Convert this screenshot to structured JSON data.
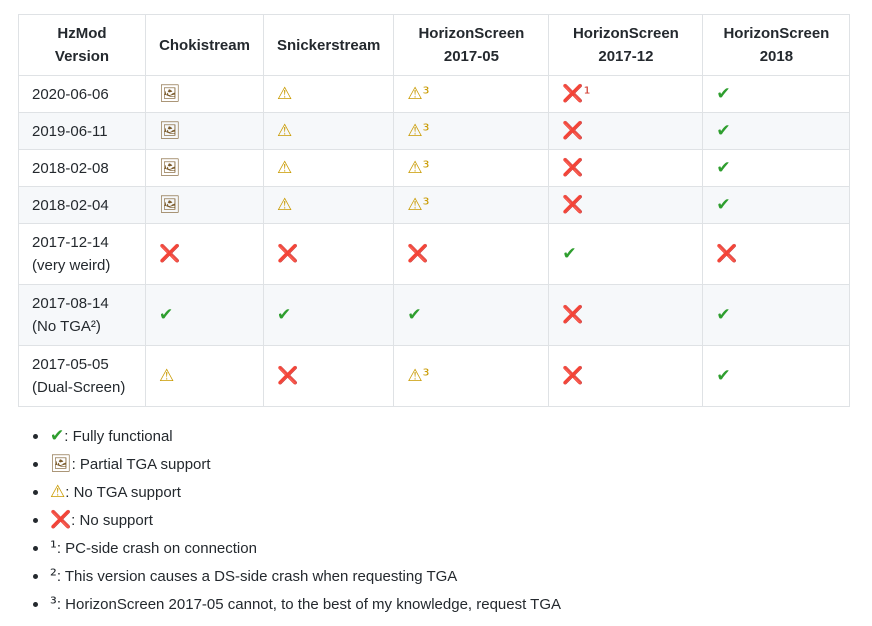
{
  "table": {
    "header": [
      [
        "HzMod",
        "Version"
      ],
      [
        "Chokistream"
      ],
      [
        "Snickerstream"
      ],
      [
        "HorizonScreen",
        "2017-05"
      ],
      [
        "HorizonScreen",
        "2017-12"
      ],
      [
        "HorizonScreen",
        "2018"
      ]
    ],
    "rows": [
      [
        [
          "2020-06-06"
        ],
        "🖼",
        "⚠",
        "⚠³",
        "❌¹",
        "✔"
      ],
      [
        [
          "2019-06-11"
        ],
        "🖼",
        "⚠",
        "⚠³",
        "❌",
        "✔"
      ],
      [
        [
          "2018-02-08"
        ],
        "🖼",
        "⚠",
        "⚠³",
        "❌",
        "✔"
      ],
      [
        [
          "2018-02-04"
        ],
        "🖼",
        "⚠",
        "⚠³",
        "❌",
        "✔"
      ],
      [
        [
          "2017-12-14",
          "(very weird)"
        ],
        "❌",
        "❌",
        "❌",
        "✔",
        "❌"
      ],
      [
        [
          "2017-08-14",
          "(No TGA²)"
        ],
        "✔",
        "✔",
        "✔",
        "❌",
        "✔"
      ],
      [
        [
          "2017-05-05",
          "(Dual-Screen)"
        ],
        "⚠",
        "❌",
        "⚠³",
        "❌",
        "✔"
      ]
    ]
  },
  "legend": [
    {
      "key": "✔",
      "text": ": Fully functional"
    },
    {
      "key": "🖼",
      "text": ": Partial TGA support"
    },
    {
      "key": "⚠",
      "text": ": No TGA support"
    },
    {
      "key": "❌",
      "text": ": No support"
    },
    {
      "key": "¹",
      "text": ": PC-side crash on connection"
    },
    {
      "key": "²",
      "text": ": This version causes a DS-side crash when requesting TGA"
    },
    {
      "key": "³",
      "text": ": HorizonScreen 2017-05 cannot, to the best of my knowledge, request TGA"
    }
  ]
}
